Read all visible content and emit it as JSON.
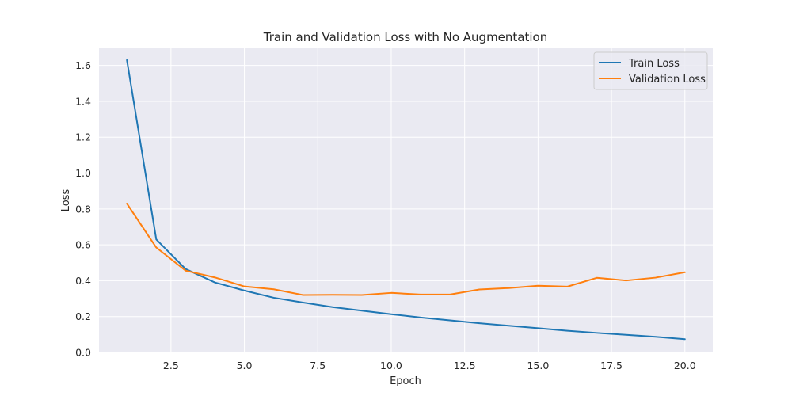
{
  "chart_data": {
    "type": "line",
    "title": "Train and Validation Loss with No Augmentation",
    "xlabel": "Epoch",
    "ylabel": "Loss",
    "xlim": [
      0.05,
      20.95
    ],
    "ylim": [
      0.0,
      1.7
    ],
    "xticks": [
      2.5,
      5.0,
      7.5,
      10.0,
      12.5,
      15.0,
      17.5,
      20.0
    ],
    "xtick_labels": [
      "2.5",
      "5.0",
      "7.5",
      "10.0",
      "12.5",
      "15.0",
      "17.5",
      "20.0"
    ],
    "yticks": [
      0.0,
      0.2,
      0.4,
      0.6,
      0.8,
      1.0,
      1.2,
      1.4,
      1.6
    ],
    "ytick_labels": [
      "0.0",
      "0.2",
      "0.4",
      "0.6",
      "0.8",
      "1.0",
      "1.2",
      "1.4",
      "1.6"
    ],
    "grid": true,
    "legend_position": "top-right",
    "x": [
      1,
      2,
      3,
      4,
      5,
      6,
      7,
      8,
      9,
      10,
      11,
      12,
      13,
      14,
      15,
      16,
      17,
      18,
      19,
      20
    ],
    "series": [
      {
        "name": "Train Loss",
        "color": "#1f77b4",
        "values": [
          1.63,
          0.63,
          0.465,
          0.39,
          0.345,
          0.305,
          0.278,
          0.253,
          0.233,
          0.213,
          0.195,
          0.179,
          0.163,
          0.149,
          0.135,
          0.121,
          0.109,
          0.098,
          0.087,
          0.074
        ]
      },
      {
        "name": "Validation Loss",
        "color": "#ff7f0e",
        "values": [
          0.83,
          0.585,
          0.456,
          0.418,
          0.368,
          0.352,
          0.32,
          0.321,
          0.32,
          0.332,
          0.323,
          0.323,
          0.351,
          0.359,
          0.372,
          0.367,
          0.416,
          0.401,
          0.417,
          0.447
        ]
      }
    ]
  }
}
